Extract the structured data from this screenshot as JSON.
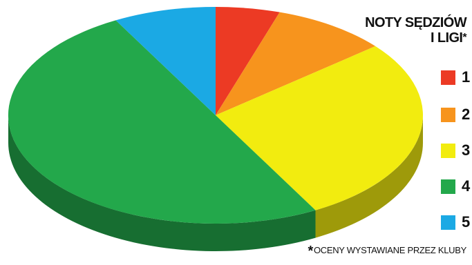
{
  "chart_data": {
    "type": "pie",
    "title": "NOTY SĘDZIÓW I LIGI",
    "title_line1": "NOTY SĘDZIÓW",
    "title_line2": "I LIGI",
    "title_marker": "*",
    "categories": [
      "1",
      "2",
      "3",
      "4",
      "5"
    ],
    "values": [
      5,
      9,
      28,
      50,
      8
    ],
    "colors": [
      "#ec3a24",
      "#f7941d",
      "#f2ec0f",
      "#23a84b",
      "#1ba9e4"
    ],
    "side_colors": [
      "#9c2a1a",
      "#b06a15",
      "#9e9a0a",
      "#176e31",
      "#117a9f"
    ],
    "legend_position": "right",
    "style": "3d",
    "footnote_marker": "*",
    "footnote": "OCENY WYSTAWIANE PRZEZ KLUBY"
  }
}
